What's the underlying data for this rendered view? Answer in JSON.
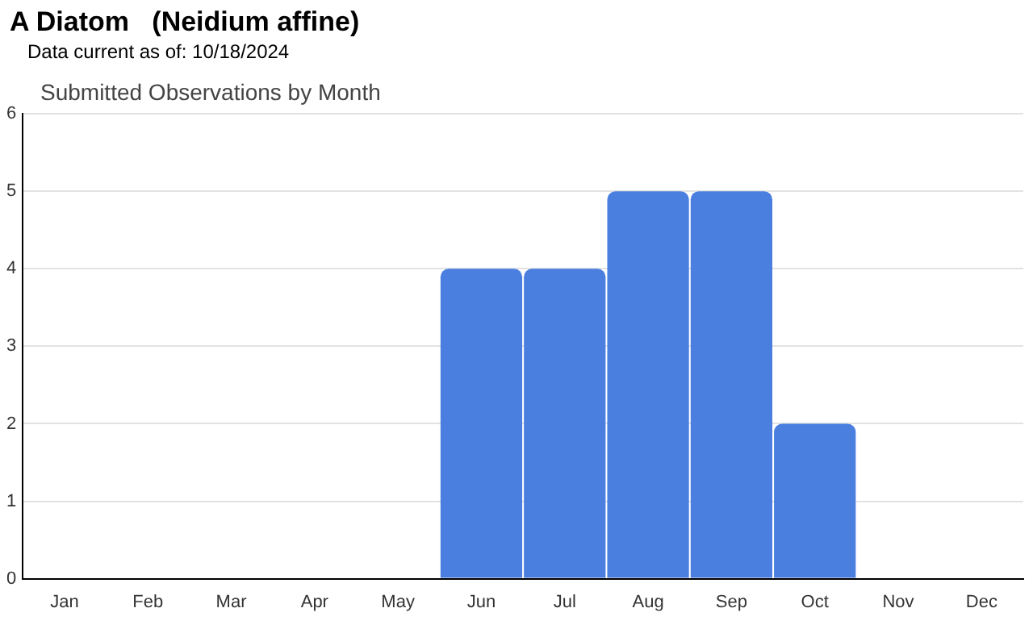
{
  "chart_data": {
    "type": "bar",
    "title": "A Diatom   (Neidium affine)",
    "subtitle": "Data current as of: 10/18/2024",
    "annotations": [
      "Submitted Observations by Month"
    ],
    "categories": [
      "Jan",
      "Feb",
      "Mar",
      "Apr",
      "May",
      "Jun",
      "Jul",
      "Aug",
      "Sep",
      "Oct",
      "Nov",
      "Dec"
    ],
    "values": [
      0,
      0,
      0,
      0,
      0,
      4,
      4,
      5,
      5,
      2,
      0,
      0
    ],
    "color": "#4a7fe0",
    "ylim": [
      0,
      6
    ],
    "yticks": [
      0,
      1,
      2,
      3,
      4,
      5,
      6
    ],
    "grid": "y",
    "legend": false
  }
}
